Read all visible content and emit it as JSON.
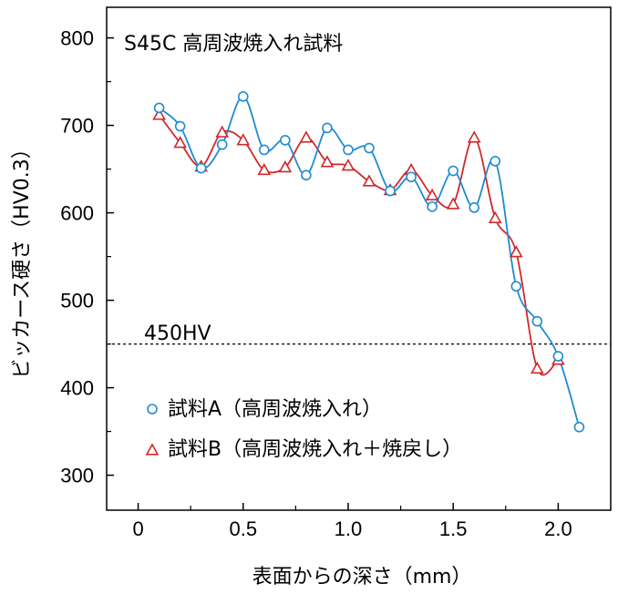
{
  "chart_data": {
    "type": "line",
    "title": "S45C 高周波焼入れ試料",
    "xlabel": "表面からの深さ（mm）",
    "ylabel": "ビッカース硬さ（HV0.3）",
    "xlim": [
      -0.15,
      2.25
    ],
    "ylim": [
      260,
      835
    ],
    "xticks": [
      0,
      0.5,
      1.0,
      1.5,
      2.0
    ],
    "xtick_labels": [
      "0",
      "0.5",
      "1.0",
      "1.5",
      "2.0"
    ],
    "yticks": [
      300,
      400,
      500,
      600,
      700,
      800
    ],
    "ytick_labels": [
      "300",
      "400",
      "500",
      "600",
      "700",
      "800"
    ],
    "grid": false,
    "legend_position": "bottom-left",
    "reference_line": {
      "y": 450,
      "label": "450HV",
      "style": "dashed"
    },
    "series": [
      {
        "name": "試料A（高周波焼入れ）",
        "marker": "circle",
        "color": "#1f8bd1",
        "x": [
          0.1,
          0.2,
          0.3,
          0.4,
          0.5,
          0.6,
          0.7,
          0.8,
          0.9,
          1.0,
          1.1,
          1.2,
          1.3,
          1.4,
          1.5,
          1.6,
          1.7,
          1.8,
          1.9,
          2.0,
          2.1
        ],
        "values": [
          720,
          699,
          651,
          678,
          733,
          672,
          683,
          643,
          697,
          672,
          674,
          625,
          641,
          607,
          648,
          606,
          659,
          516,
          476,
          436,
          355
        ]
      },
      {
        "name": "試料B（高周波焼入れ＋焼戻し）",
        "marker": "triangle",
        "color": "#d3282c",
        "x": [
          0.1,
          0.2,
          0.3,
          0.4,
          0.5,
          0.6,
          0.7,
          0.8,
          0.9,
          1.0,
          1.1,
          1.2,
          1.3,
          1.4,
          1.5,
          1.6,
          1.7,
          1.8,
          1.9,
          2.0
        ],
        "values": [
          712,
          680,
          653,
          692,
          683,
          649,
          652,
          686,
          658,
          654,
          636,
          626,
          649,
          620,
          610,
          686,
          594,
          555,
          422,
          432
        ]
      }
    ]
  }
}
